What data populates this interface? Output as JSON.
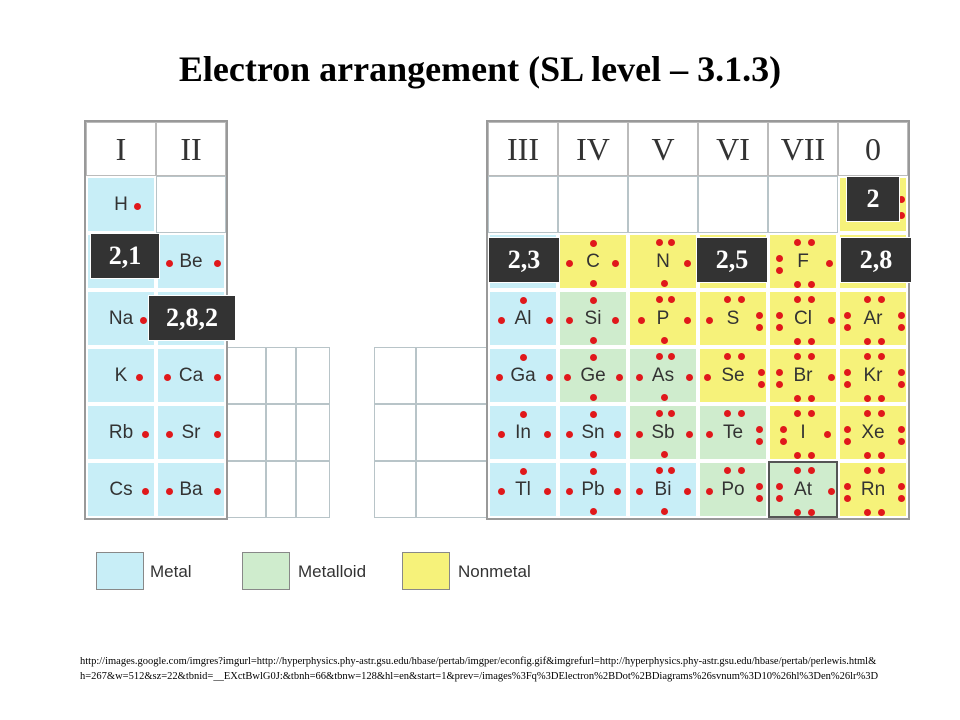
{
  "title": "Electron arrangement (SL level – 3.1.3)",
  "colors": {
    "metal": "#c8eef7",
    "metalloid": "#cfeccd",
    "nonmetal": "#f6f27a",
    "dot": "#e0181b",
    "label_bg": "#333333"
  },
  "groups_left": [
    "I",
    "II"
  ],
  "groups_right": [
    "III",
    "IV",
    "V",
    "VI",
    "VII",
    "0"
  ],
  "elements": {
    "H": "H",
    "Be": "Be",
    "Na": "Na",
    "K": "K",
    "Ca": "Ca",
    "Rb": "Rb",
    "Sr": "Sr",
    "Cs": "Cs",
    "Ba": "Ba",
    "C": "C",
    "N": "N",
    "F": "F",
    "Al": "Al",
    "Si": "Si",
    "P": "P",
    "S": "S",
    "Cl": "Cl",
    "Ar": "Ar",
    "Ga": "Ga",
    "Ge": "Ge",
    "As": "As",
    "Se": "Se",
    "Br": "Br",
    "Kr": "Kr",
    "In": "In",
    "Sn": "Sn",
    "Sb": "Sb",
    "Te": "Te",
    "I": "I",
    "Xe": "Xe",
    "Tl": "Tl",
    "Pb": "Pb",
    "Bi": "Bi",
    "Po": "Po",
    "At": "At",
    "Rn": "Rn"
  },
  "labels": {
    "li": "2,1",
    "mg": "2,8,2",
    "b": "2,3",
    "n": "2,5",
    "ne": "2,8",
    "he": "2"
  },
  "legend": {
    "metal": "Metal",
    "metalloid": "Metalloid",
    "nonmetal": "Nonmetal"
  },
  "source_url": "http://images.google.com/imgres?imgurl=http://hyperphysics.phy-astr.gsu.edu/hbase/pertab/imgper/econfig.gif&imgrefurl=http://hyperphysics.phy-astr.gsu.edu/hbase/pertab/perlewis.html&h=267&w=512&sz=22&tbnid=__EXctBwlG0J:&tbnh=66&tbnw=128&hl=en&start=1&prev=/images%3Fq%3DElectron%2BDot%2BDiagrams%26svnum%3D10%26hl%3Den%26lr%3D"
}
